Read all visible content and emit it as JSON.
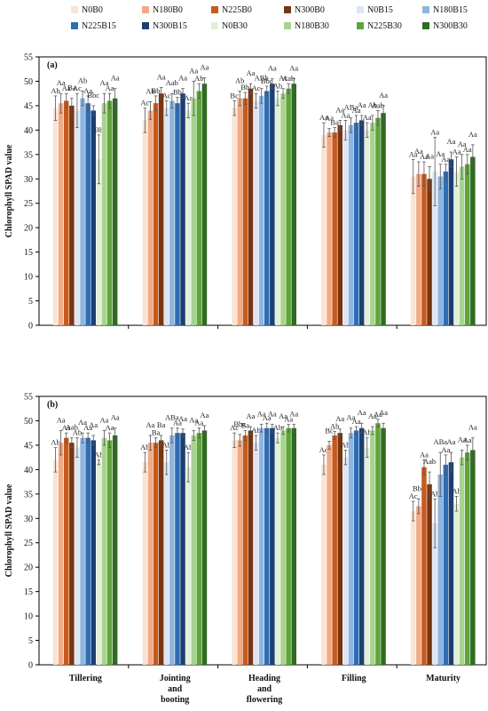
{
  "legend": [
    {
      "name": "N0B0",
      "color": "#FAE3D2"
    },
    {
      "name": "N180B0",
      "color": "#F2A985"
    },
    {
      "name": "N225B0",
      "color": "#C65A1E"
    },
    {
      "name": "N300B0",
      "color": "#7A3410"
    },
    {
      "name": "N0B15",
      "color": "#DCE6F4"
    },
    {
      "name": "N180B15",
      "color": "#8FB4E0"
    },
    {
      "name": "N225B15",
      "color": "#2E6DB4"
    },
    {
      "name": "N300B15",
      "color": "#1C3F73"
    },
    {
      "name": "N0B30",
      "color": "#E1F0D7"
    },
    {
      "name": "N180B30",
      "color": "#A8D38D"
    },
    {
      "name": "N225B30",
      "color": "#5EA43A"
    },
    {
      "name": "N300B30",
      "color": "#2F6B21"
    }
  ],
  "chart_data": [
    {
      "type": "bar",
      "panel_label": "(a)",
      "ylabel": "Chlorophyll SPAD value",
      "ylim": [
        0,
        55
      ],
      "yticks": [
        0,
        5,
        10,
        15,
        20,
        25,
        30,
        35,
        40,
        45,
        50,
        55
      ],
      "categories": [
        "Tillering",
        "Jointing and booting",
        "Heading and flowering",
        "Filling",
        "Maturity"
      ],
      "series": [
        {
          "name": "N0B0",
          "values": [
            44.5,
            42.0,
            44.5,
            39.0,
            30.5
          ],
          "errors": [
            2.5,
            2.5,
            1.5,
            2.5,
            3.5
          ],
          "labels": [
            "Ab",
            "Ac",
            "Bc",
            "Aa",
            "Aa"
          ]
        },
        {
          "name": "N180B0",
          "values": [
            45.5,
            44.0,
            46.5,
            39.5,
            31.0
          ],
          "errors": [
            2.0,
            1.8,
            1.5,
            0.8,
            2.5
          ],
          "labels": [
            "Aa",
            "Ab",
            "Ab",
            "Aa",
            "Aa"
          ]
        },
        {
          "name": "N225B0",
          "values": [
            46.0,
            45.5,
            46.5,
            39.5,
            31.0
          ],
          "errors": [
            1.5,
            1.5,
            1.2,
            1.0,
            2.5
          ],
          "labels": [
            "Aa",
            "Bb",
            "Bb",
            "Ba",
            "Aa"
          ]
        },
        {
          "name": "N300B0",
          "values": [
            45.0,
            47.5,
            48.5,
            41.0,
            30.0
          ],
          "errors": [
            1.5,
            1.2,
            1.0,
            1.0,
            2.5
          ],
          "labels": [
            "Ba",
            "Aa",
            "Aa",
            "Aa",
            "Aa"
          ]
        },
        {
          "name": "N0B15",
          "values": [
            44.0,
            44.5,
            46.0,
            40.0,
            31.5
          ],
          "errors": [
            3.5,
            1.5,
            1.5,
            2.0,
            7.0
          ],
          "labels": [
            "Ac",
            "Ac",
            "Ac",
            "Aa",
            "Aa"
          ]
        },
        {
          "name": "N180B15",
          "values": [
            46.5,
            46.0,
            47.0,
            41.0,
            30.5
          ],
          "errors": [
            1.5,
            1.5,
            1.5,
            1.5,
            2.5
          ],
          "labels": [
            "Ab",
            "Aab",
            "ABb",
            "ABa",
            "Aa"
          ]
        },
        {
          "name": "N225B15",
          "values": [
            45.5,
            45.5,
            48.0,
            41.5,
            31.5
          ],
          "errors": [
            1.5,
            1.2,
            1.0,
            1.5,
            1.5
          ],
          "labels": [
            "Aa",
            "Bb",
            "Bbc",
            "Aa",
            "Aa"
          ]
        },
        {
          "name": "N300B15",
          "values": [
            44.0,
            47.5,
            49.5,
            42.0,
            34.0
          ],
          "errors": [
            1.0,
            1.0,
            1.0,
            1.0,
            1.5
          ],
          "labels": [
            "Bbc",
            "Aa",
            "Aa",
            "Aa",
            "Aa"
          ]
        },
        {
          "name": "N0B30",
          "values": [
            34.0,
            44.0,
            46.5,
            40.0,
            31.5
          ],
          "errors": [
            5.0,
            1.5,
            1.5,
            1.5,
            3.0
          ],
          "labels": [
            "Bb",
            "Aa",
            "Ab",
            "Aa",
            "Aa"
          ]
        },
        {
          "name": "N180B30",
          "values": [
            45.5,
            46.5,
            47.5,
            41.5,
            32.5
          ],
          "errors": [
            2.0,
            3.5,
            1.0,
            1.5,
            2.5
          ],
          "labels": [
            "Aa",
            "Aa",
            "Ac",
            "Ab",
            "Aa"
          ]
        },
        {
          "name": "N225B30",
          "values": [
            46.0,
            48.0,
            48.5,
            42.5,
            33.0
          ],
          "errors": [
            1.5,
            1.5,
            1.0,
            1.5,
            2.0
          ],
          "labels": [
            "Aa",
            "Ab",
            "Aab",
            "Aab",
            "Aa"
          ]
        },
        {
          "name": "N300B30",
          "values": [
            46.5,
            49.5,
            49.5,
            43.5,
            34.5
          ],
          "errors": [
            2.0,
            1.2,
            1.0,
            1.5,
            2.5
          ],
          "labels": [
            "Aa",
            "Aa",
            "Aa",
            "Aa",
            "Aa"
          ]
        }
      ]
    },
    {
      "type": "bar",
      "panel_label": "(b)",
      "ylabel": "Chlorophyll SPAD value",
      "ylim": [
        0,
        55
      ],
      "yticks": [
        0,
        5,
        10,
        15,
        20,
        25,
        30,
        35,
        40,
        45,
        50,
        55
      ],
      "categories": [
        "Tillering",
        "Jointing and booting",
        "Heading and flowering",
        "Filling",
        "Maturity"
      ],
      "category_lines": [
        [
          "Tillering"
        ],
        [
          "Jointing",
          "and",
          "booting"
        ],
        [
          "Heading",
          "and",
          "flowering"
        ],
        [
          "Filling"
        ],
        [
          "Maturity"
        ]
      ],
      "series": [
        {
          "name": "N0B0",
          "values": [
            42.0,
            41.5,
            46.0,
            41.0,
            31.5
          ],
          "errors": [
            2.5,
            2.0,
            1.5,
            2.0,
            2.0
          ],
          "labels": [
            "Ab",
            "Ab",
            "Ac",
            "Ad",
            "Ac"
          ]
        },
        {
          "name": "N180B0",
          "values": [
            45.5,
            45.5,
            46.0,
            45.0,
            32.5
          ],
          "errors": [
            2.5,
            1.5,
            1.2,
            0.8,
            1.5
          ],
          "labels": [
            "Aa",
            "Aa",
            "Bbc",
            "Bc",
            "Bbc"
          ]
        },
        {
          "name": "N225B0",
          "values": [
            46.5,
            45.5,
            47.0,
            47.0,
            40.5
          ],
          "errors": [
            1.0,
            1.0,
            1.0,
            0.8,
            1.5
          ],
          "labels": [
            "Aa",
            "Ba",
            "Ba",
            "Ab",
            "Aa"
          ]
        },
        {
          "name": "N300B0",
          "values": [
            45.5,
            46.0,
            48.0,
            47.5,
            37.0
          ],
          "errors": [
            1.0,
            1.0,
            0.8,
            0.8,
            2.5
          ],
          "labels": [
            "Aab",
            "Ba",
            "Aa",
            "Aa",
            "Aab"
          ]
        },
        {
          "name": "N0B15",
          "values": [
            44.5,
            41.5,
            45.5,
            42.5,
            29.0
          ],
          "errors": [
            2.0,
            2.5,
            1.5,
            1.5,
            5.0
          ],
          "labels": [
            "Ab",
            "Ab",
            "Ab",
            "Ab",
            "Ab"
          ]
        },
        {
          "name": "N180B15",
          "values": [
            46.5,
            47.0,
            48.5,
            47.5,
            39.0
          ],
          "errors": [
            1.0,
            1.5,
            0.8,
            1.0,
            4.5
          ],
          "labels": [
            "Aa",
            "ABa",
            "Aa",
            "Aa",
            "ABa"
          ]
        },
        {
          "name": "N225B15",
          "values": [
            46.5,
            47.5,
            48.5,
            48.0,
            41.0
          ],
          "errors": [
            1.0,
            1.0,
            1.0,
            0.8,
            2.0
          ],
          "labels": [
            "Aa",
            "Aa",
            "Aa",
            "Aa",
            "Aa"
          ]
        },
        {
          "name": "N300B15",
          "values": [
            46.0,
            47.5,
            48.5,
            48.5,
            41.5
          ],
          "errors": [
            1.0,
            0.8,
            0.8,
            1.0,
            2.0
          ],
          "labels": [
            "Aa",
            "Aa",
            "Aa",
            "Aa",
            "Aa"
          ]
        },
        {
          "name": "N0B30",
          "values": [
            41.5,
            40.5,
            46.5,
            44.5,
            33.0
          ],
          "errors": [
            0.5,
            3.0,
            1.0,
            2.0,
            1.5
          ],
          "labels": [
            "Ab",
            "Ab",
            "Ab",
            "Ab",
            "Ab"
          ]
        },
        {
          "name": "N180B30",
          "values": [
            46.5,
            47.0,
            48.0,
            48.0,
            42.5
          ],
          "errors": [
            1.5,
            1.0,
            0.8,
            0.8,
            1.5
          ],
          "labels": [
            "Aa",
            "Aa",
            "Aa",
            "Aa",
            "Aa"
          ]
        },
        {
          "name": "N225B30",
          "values": [
            46.0,
            47.5,
            48.5,
            49.5,
            43.5
          ],
          "errors": [
            1.5,
            1.0,
            0.8,
            0.8,
            1.5
          ],
          "labels": [
            "Aa",
            "Aa",
            "Aa",
            "Aa",
            "Aa"
          ]
        },
        {
          "name": "N300B30",
          "values": [
            47.0,
            48.0,
            48.5,
            48.5,
            44.0
          ],
          "errors": [
            1.5,
            1.0,
            0.8,
            1.0,
            2.5
          ],
          "labels": [
            "Aa",
            "Aa",
            "Aa",
            "Aa",
            "Aa"
          ]
        }
      ]
    }
  ]
}
